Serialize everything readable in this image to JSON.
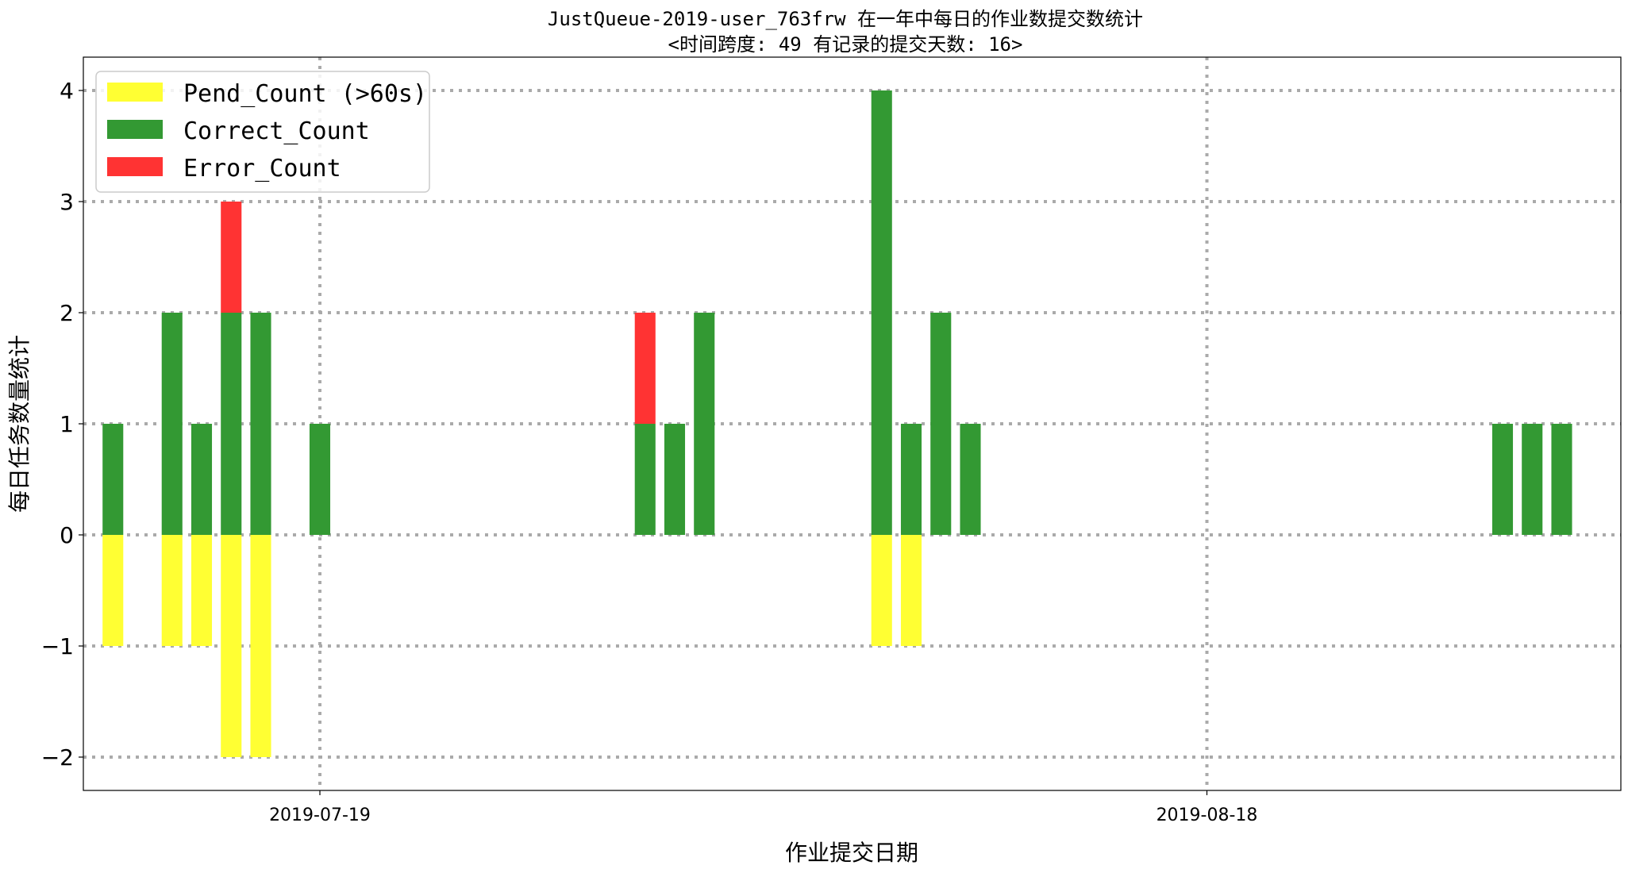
{
  "chart_data": {
    "type": "bar",
    "title": "JustQueue-2019-user_763frw 在一年中每日的作业数提交数统计",
    "subtitle": "<时间跨度: 49  有记录的提交天数: 16>",
    "xlabel": "作业提交日期",
    "ylabel": "每日任务数量统计",
    "ylim": [
      -2.3,
      4.3
    ],
    "x_range": [
      "2019-07-11",
      "2019-09-01"
    ],
    "yticks": [
      -2,
      -1,
      0,
      1,
      2,
      3,
      4
    ],
    "ytick_labels": [
      "−2",
      "−1",
      "0",
      "1",
      "2",
      "3",
      "4"
    ],
    "xticks": [
      "2019-07-19",
      "2019-08-18"
    ],
    "grid": true,
    "legend_position": "top-left",
    "stacked": true,
    "series": [
      {
        "name": "Pend_Count (>60s)",
        "color": "#ffff33",
        "x": [
          "2019-07-12",
          "2019-07-14",
          "2019-07-15",
          "2019-07-16",
          "2019-07-17",
          "2019-08-07",
          "2019-08-08"
        ],
        "values": [
          -1,
          -1,
          -1,
          -2,
          -2,
          -1,
          -1
        ]
      },
      {
        "name": "Correct_Count",
        "color": "#339933",
        "x": [
          "2019-07-12",
          "2019-07-14",
          "2019-07-15",
          "2019-07-16",
          "2019-07-17",
          "2019-07-19",
          "2019-07-30",
          "2019-07-31",
          "2019-08-01",
          "2019-08-07",
          "2019-08-08",
          "2019-08-09",
          "2019-08-10",
          "2019-08-28",
          "2019-08-29",
          "2019-08-30"
        ],
        "values": [
          1,
          2,
          1,
          2,
          2,
          1,
          1,
          1,
          2,
          4,
          1,
          2,
          1,
          1,
          1,
          1
        ]
      },
      {
        "name": "Error_Count",
        "color": "#ff3333",
        "x": [
          "2019-07-16",
          "2019-07-30"
        ],
        "values": [
          1,
          1
        ]
      }
    ]
  }
}
